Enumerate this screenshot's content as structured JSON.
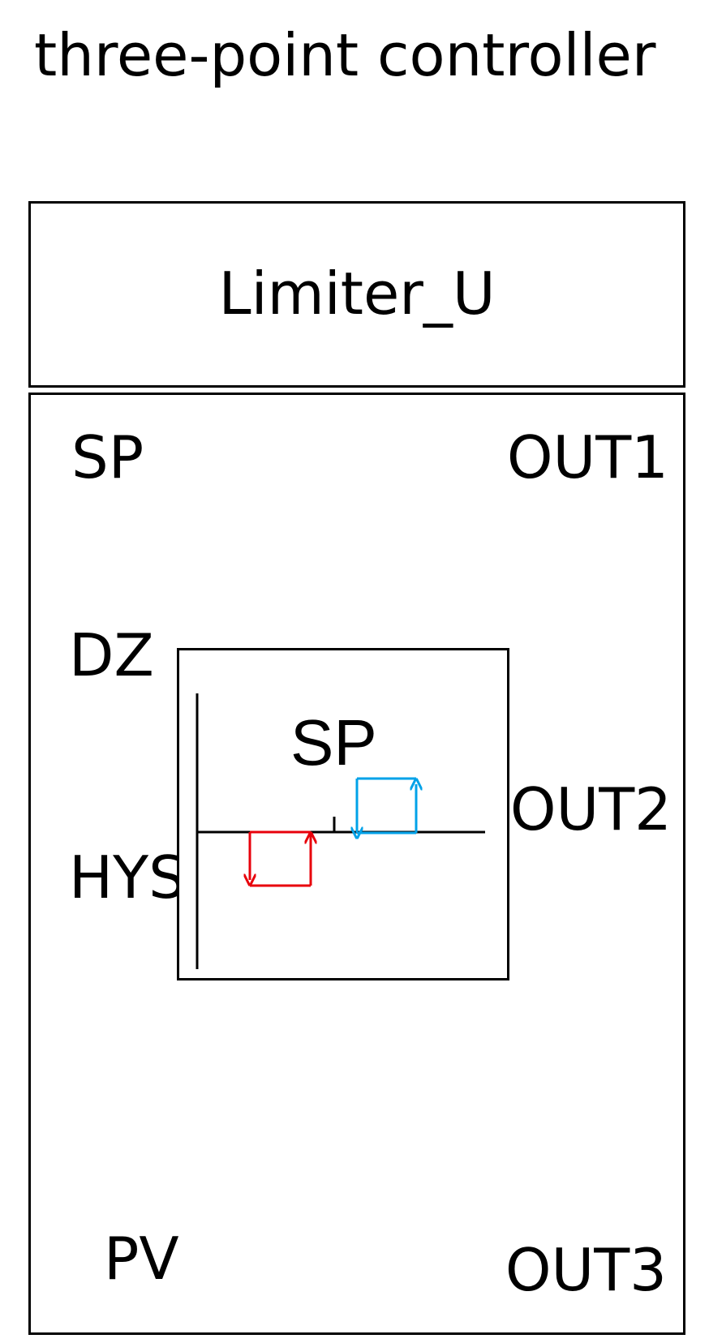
{
  "title": "three-point controller",
  "limiter": {
    "label": "Limiter_U"
  },
  "inputs": {
    "sp": "SP",
    "dz": "DZ",
    "hys": "HYS",
    "pv": "PV"
  },
  "outputs": {
    "out1": "OUT1",
    "out2": "OUT2",
    "out3": "OUT3"
  },
  "graph": {
    "label": "SP",
    "colors": {
      "lower_hysteresis": "#e8000b",
      "upper_hysteresis": "#00a2e8",
      "axis": "#000000"
    }
  }
}
